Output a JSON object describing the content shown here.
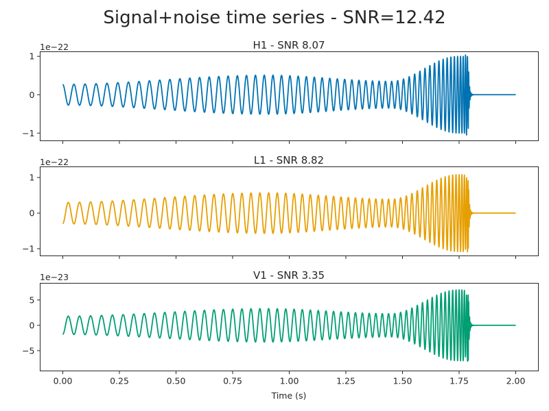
{
  "chart_data": {
    "type": "line",
    "title": "Signal+noise time series - SNR=12.42",
    "xlabel": "Time (s)",
    "xlim": [
      -0.1,
      2.1
    ],
    "x_ticks": [
      0.0,
      0.25,
      0.5,
      0.75,
      1.0,
      1.25,
      1.5,
      1.75,
      2.0
    ],
    "x_tick_labels": [
      "0.00",
      "0.25",
      "0.50",
      "0.75",
      "1.00",
      "1.25",
      "1.50",
      "1.75",
      "2.00"
    ],
    "panels": [
      {
        "title": "H1 - SNR 8.07",
        "color": "#0072b2",
        "offset_label": "1e−22",
        "ylim": [
          -1.2,
          1.12
        ],
        "y_ticks": [
          -1,
          0,
          1
        ],
        "y_tick_labels": [
          "−1",
          "0",
          "1"
        ],
        "signal": {
          "t_start": 0.0,
          "t_merge": 1.79,
          "t_end": 2.0,
          "start_amplitude": 0.27,
          "start_phase_sign": 1,
          "peak_amplitude": 0.51,
          "dip_amplitude": 0.35,
          "final_amplitude": 1.0,
          "ringdown_peak": 1.07
        }
      },
      {
        "title": "L1 - SNR 8.82",
        "color": "#e69f00",
        "offset_label": "1e−22",
        "ylim": [
          -1.2,
          1.3
        ],
        "y_ticks": [
          -1,
          0,
          1
        ],
        "y_tick_labels": [
          "−1",
          "0",
          "1"
        ],
        "signal": {
          "t_start": 0.0,
          "t_merge": 1.79,
          "t_end": 2.0,
          "start_amplitude": 0.3,
          "start_phase_sign": -1,
          "peak_amplitude": 0.57,
          "dip_amplitude": 0.39,
          "final_amplitude": 1.08,
          "ringdown_peak": 1.2
        }
      },
      {
        "title": "V1 - SNR 3.35",
        "color": "#009e73",
        "offset_label": "1e−23",
        "ylim": [
          -9,
          8.3
        ],
        "y_ticks": [
          -5,
          0,
          5
        ],
        "y_tick_labels": [
          "−5",
          "0",
          "5"
        ],
        "signal": {
          "t_start": 0.0,
          "t_merge": 1.79,
          "t_end": 2.0,
          "start_amplitude": 1.8,
          "start_phase_sign": -1,
          "peak_amplitude": 3.3,
          "dip_amplitude": 2.3,
          "final_amplitude": 7.0,
          "ringdown_peak": 8.4
        }
      }
    ]
  }
}
